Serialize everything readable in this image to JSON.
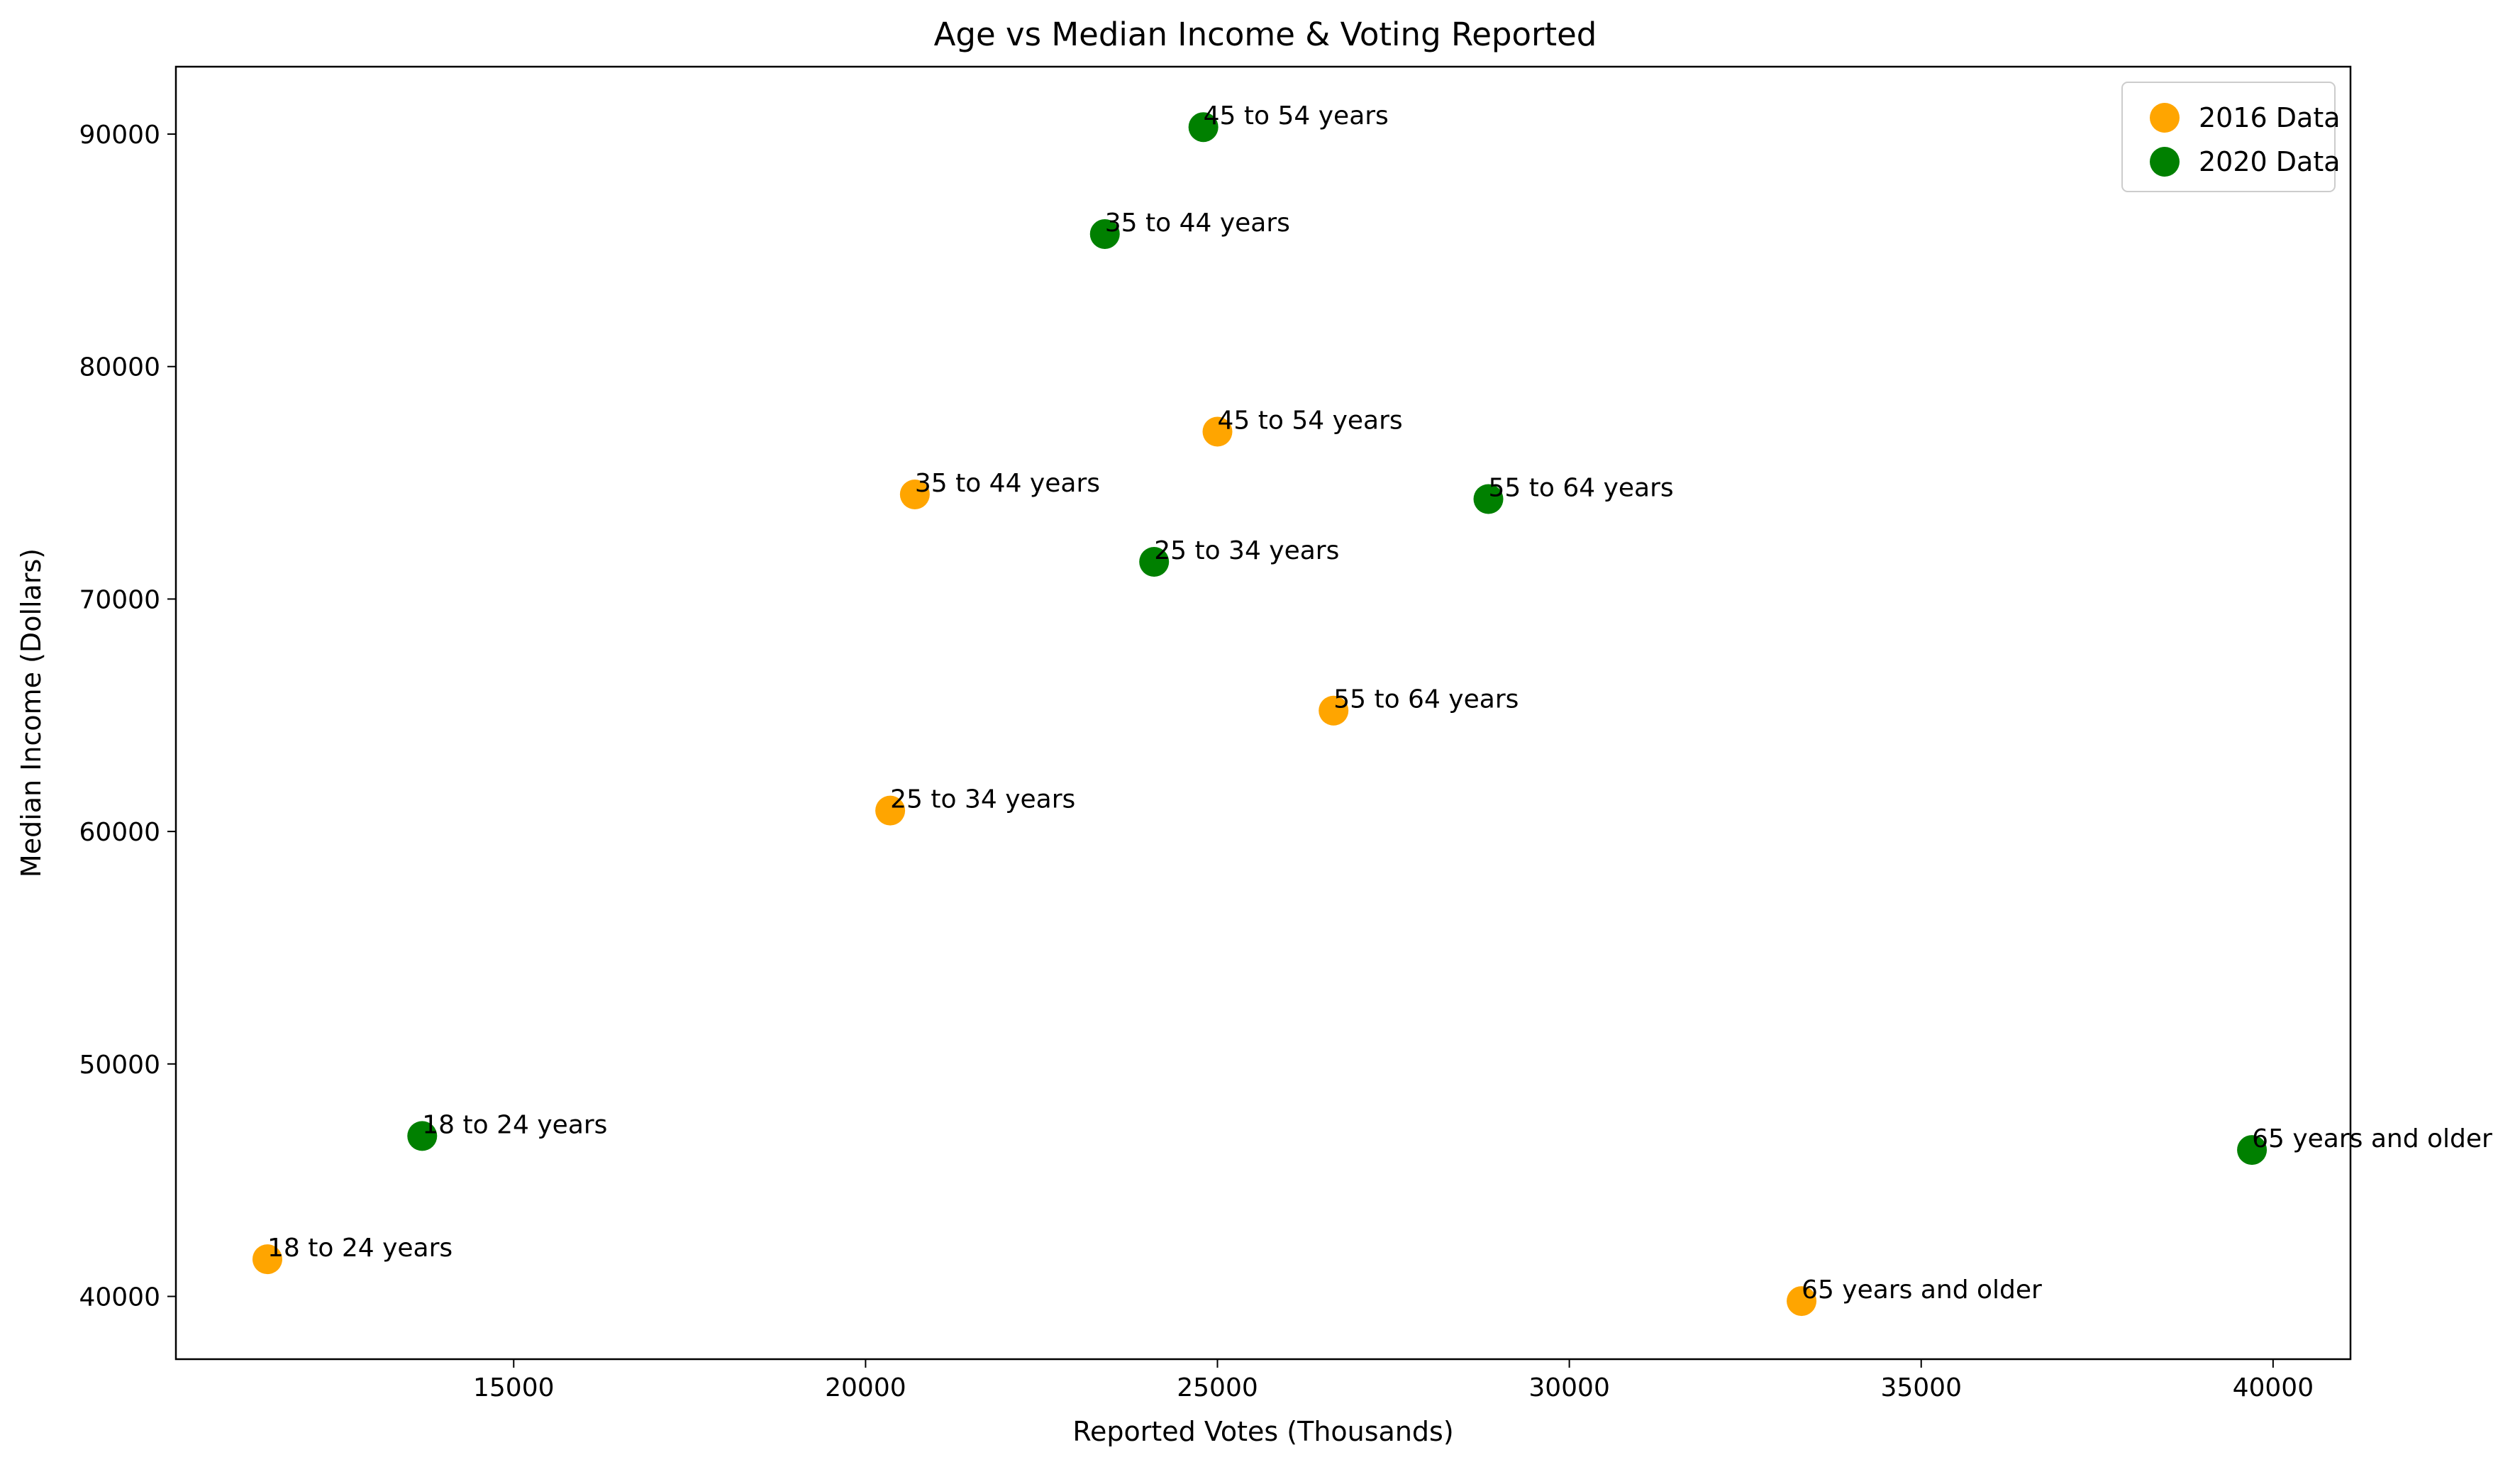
{
  "chart_data": {
    "type": "scatter",
    "title": "Age vs Median Income & Voting Reported",
    "xlabel": "Reported Votes (Thousands)",
    "ylabel": "Median Income (Dollars)",
    "xlim": [
      10200,
      41100
    ],
    "ylim": [
      37300,
      92900
    ],
    "xticks": [
      15000,
      20000,
      25000,
      30000,
      35000,
      40000
    ],
    "yticks": [
      40000,
      50000,
      60000,
      70000,
      80000,
      90000
    ],
    "grid": false,
    "legend_position": "upper right",
    "series": [
      {
        "name": "2016 Data",
        "color": "#FFA500",
        "points": [
          {
            "label": "18 to 24 years",
            "x": 11500,
            "y": 41600
          },
          {
            "label": "25 to 34 years",
            "x": 20350,
            "y": 60900
          },
          {
            "label": "35 to 44 years",
            "x": 20700,
            "y": 74500
          },
          {
            "label": "45 to 54 years",
            "x": 25000,
            "y": 77200
          },
          {
            "label": "55 to 64 years",
            "x": 26650,
            "y": 65200
          },
          {
            "label": "65 years and older",
            "x": 33300,
            "y": 39800
          }
        ]
      },
      {
        "name": "2020 Data",
        "color": "#008000",
        "points": [
          {
            "label": "18 to 24 years",
            "x": 13700,
            "y": 46900
          },
          {
            "label": "25 to 34 years",
            "x": 24100,
            "y": 71600
          },
          {
            "label": "35 to 44 years",
            "x": 23400,
            "y": 85700
          },
          {
            "label": "45 to 54 years",
            "x": 24800,
            "y": 90300
          },
          {
            "label": "55 to 64 years",
            "x": 28850,
            "y": 74300
          },
          {
            "label": "65 years and older",
            "x": 39700,
            "y": 46300
          }
        ]
      }
    ]
  }
}
